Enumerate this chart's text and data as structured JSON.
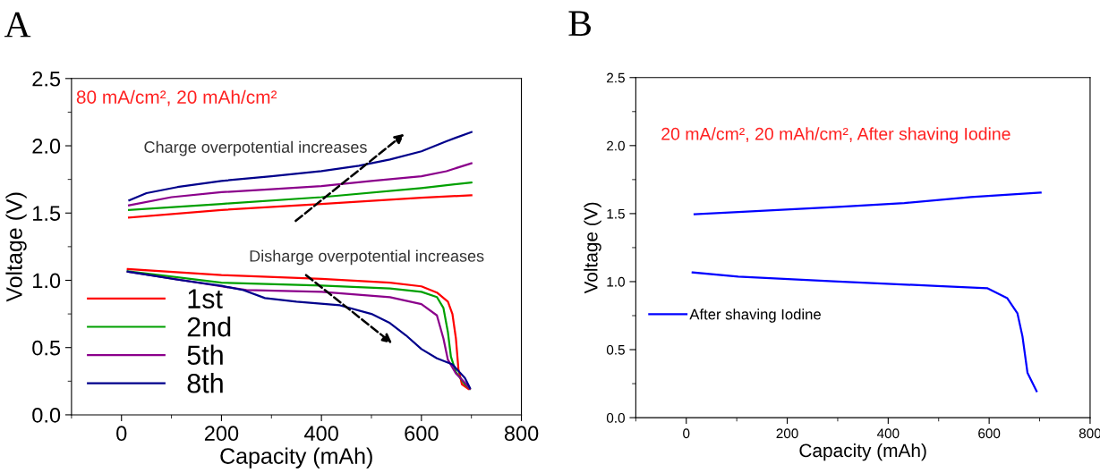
{
  "chart_data": [
    {
      "type": "line",
      "title": "A",
      "xlabel": "Capacity (mAh)",
      "ylabel": "Voltage (V)",
      "xlim": [
        -100,
        800
      ],
      "xticks": [
        0,
        200,
        400,
        600,
        800
      ],
      "ylim": [
        0,
        2.5
      ],
      "yticks": [
        {
          "value": 0,
          "label": "0.0"
        },
        0.5,
        {
          "value": 1,
          "label": "1.0"
        },
        1.5,
        {
          "value": 2,
          "label": "2.0"
        },
        2.5
      ],
      "grid": false,
      "legend": "bottom left",
      "line_style": "solid",
      "marker": "none",
      "annotations": [
        "80 mA/cm², 20 mAh/cm²",
        "Charge overpotential increases",
        "Disharge overpotential increases"
      ],
      "series": [
        {
          "name": "1st",
          "color": "#ff0000",
          "x": [
            15,
            200,
            400,
            600,
            700,
            null,
            12.5,
            200,
            400,
            537,
            600,
            631,
            653,
            662,
            669,
            674,
            681,
            694
          ],
          "values": [
            1.466,
            1.523,
            1.568,
            1.614,
            1.632,
            null,
            1.084,
            1.039,
            1.011,
            0.982,
            0.955,
            0.909,
            0.841,
            0.75,
            0.568,
            0.341,
            0.227,
            0.193
          ]
        },
        {
          "name": "2nd",
          "color": "#00a000",
          "x": [
            15,
            200,
            400,
            600,
            700,
            null,
            12.5,
            200,
            400,
            537,
            600,
            631,
            644,
            653,
            659,
            669,
            687,
            697
          ],
          "values": [
            1.523,
            1.568,
            1.618,
            1.686,
            1.727,
            null,
            1.068,
            0.982,
            0.961,
            0.939,
            0.914,
            0.875,
            0.795,
            0.614,
            0.432,
            0.318,
            0.227,
            0.193
          ]
        },
        {
          "name": "5th",
          "color": "#8b008b",
          "x": [
            15,
            100,
            200,
            300,
            400,
            500,
            600,
            650,
            700,
            null,
            12.5,
            200,
            250,
            400,
            537,
            600,
            631,
            644,
            653,
            669,
            687,
            697
          ],
          "values": [
            1.557,
            1.618,
            1.655,
            1.677,
            1.7,
            1.739,
            1.773,
            1.811,
            1.87,
            null,
            1.064,
            0.955,
            0.927,
            0.914,
            0.875,
            0.823,
            0.739,
            0.568,
            0.409,
            0.307,
            0.239,
            0.193
          ]
        },
        {
          "name": "8th",
          "color": "#00008b",
          "x": [
            15.6,
            50,
            112,
            200,
            300,
            400,
            475,
            537,
            600,
            650,
            700,
            null,
            12.5,
            112,
            200,
            244,
            287,
            350,
            437,
            500,
            537,
            569,
            600,
            631,
            662,
            687,
            697
          ],
          "values": [
            1.595,
            1.648,
            1.693,
            1.739,
            1.773,
            1.811,
            1.852,
            1.898,
            1.959,
            2.034,
            2.102,
            null,
            1.064,
            1.005,
            0.959,
            0.927,
            0.868,
            0.841,
            0.814,
            0.75,
            0.682,
            0.591,
            0.489,
            0.42,
            0.375,
            0.273,
            0.2
          ]
        }
      ]
    },
    {
      "type": "line",
      "title": "B",
      "xlabel": "Capacity (mAh)",
      "ylabel": "Voltage (V)",
      "xlim": [
        -100,
        800
      ],
      "xticks": [
        0,
        200,
        400,
        600,
        800
      ],
      "ylim": [
        0,
        2.5
      ],
      "yticks": [
        {
          "value": 0,
          "label": "0.0"
        },
        0.5,
        {
          "value": 1,
          "label": "1.0"
        },
        1.5,
        {
          "value": 2,
          "label": "2.0"
        },
        2.5
      ],
      "grid": false,
      "legend": "left",
      "line_style": "solid",
      "marker": "none",
      "annotations": [
        "20 mA/cm², 20 mAh/cm², After shaving Iodine"
      ],
      "series": [
        {
          "name": "After shaving Iodine",
          "color": "#0000ff",
          "x": [
            16.4,
            103,
            301,
            432,
            564,
            702,
            null,
            12.5,
            103,
            301,
            498,
            597,
            636,
            656,
            666,
            676,
            694
          ],
          "values": [
            1.495,
            1.512,
            1.549,
            1.578,
            1.622,
            1.654,
            null,
            1.068,
            1.037,
            1.0,
            0.968,
            0.951,
            0.878,
            0.768,
            0.598,
            0.329,
            0.195
          ]
        }
      ]
    }
  ]
}
